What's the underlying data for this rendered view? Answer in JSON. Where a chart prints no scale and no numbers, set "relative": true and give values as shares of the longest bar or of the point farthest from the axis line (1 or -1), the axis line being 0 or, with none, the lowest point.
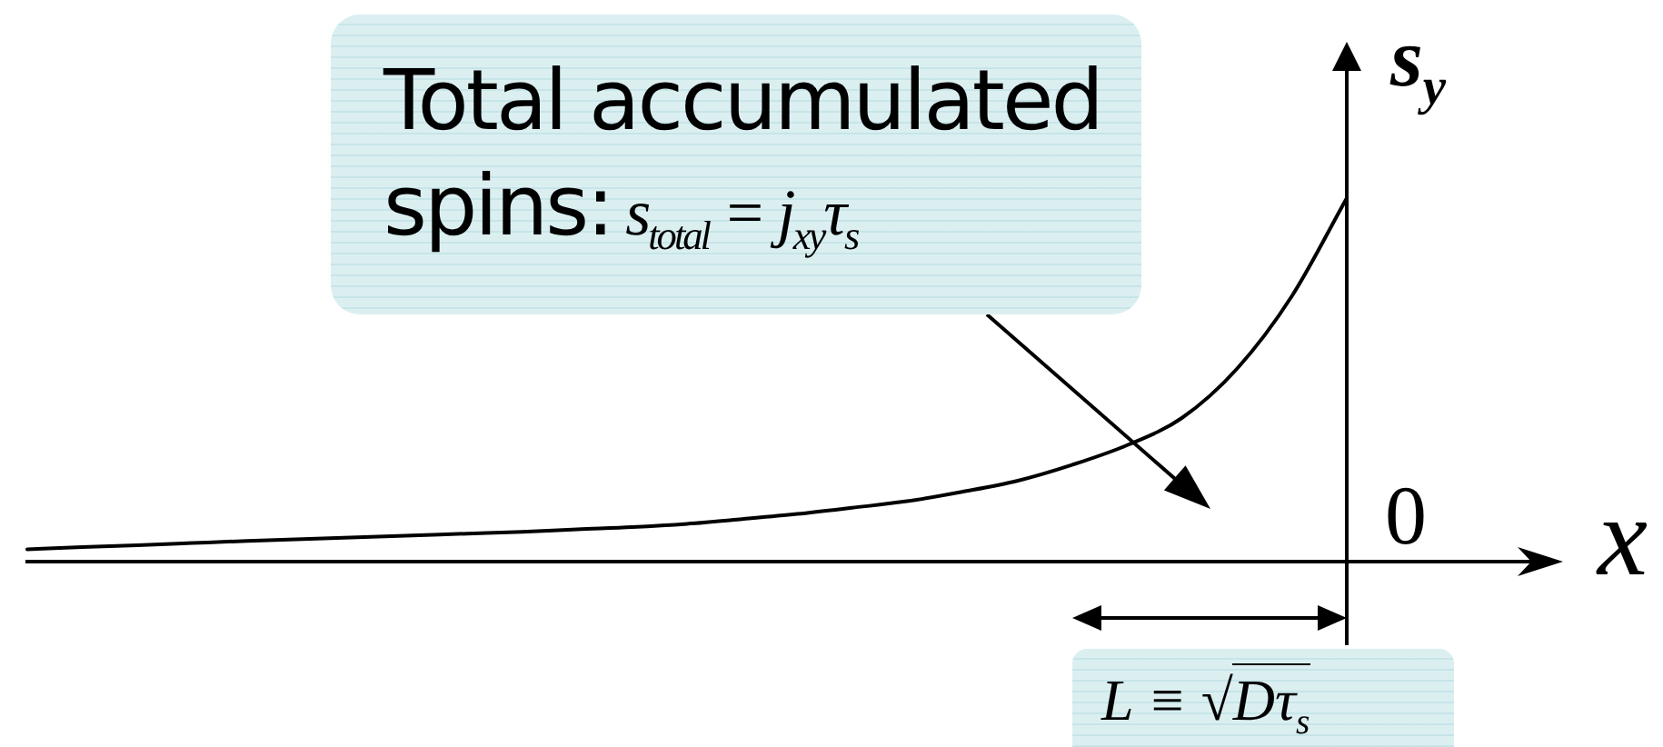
{
  "chart_data": {
    "type": "line",
    "relative": true,
    "xlabel": "x",
    "ylabel": "s$_{y}$",
    "categories": [
      null,
      null,
      null,
      null,
      null,
      null,
      null,
      null,
      null,
      null,
      null,
      null,
      null,
      null,
      null,
      null,
      null,
      null,
      null,
      null,
      null,
      null,
      null,
      null,
      null
    ],
    "values": [
      0.034,
      0.04,
      0.045,
      0.051,
      0.057,
      0.062,
      0.067,
      0.072,
      0.077,
      0.082,
      0.089,
      0.095,
      0.104,
      0.117,
      0.131,
      0.148,
      0.166,
      0.192,
      0.222,
      0.266,
      0.32,
      0.395,
      0.53,
      0.73,
      1
    ],
    "color": "#000000",
    "annotations": [
      "Total accumulated spins: s$_{total}$ = j$_{xy}$τ$_{s}$",
      "L ≡ √Dτ$_{s}$",
      "0"
    ]
  }
}
